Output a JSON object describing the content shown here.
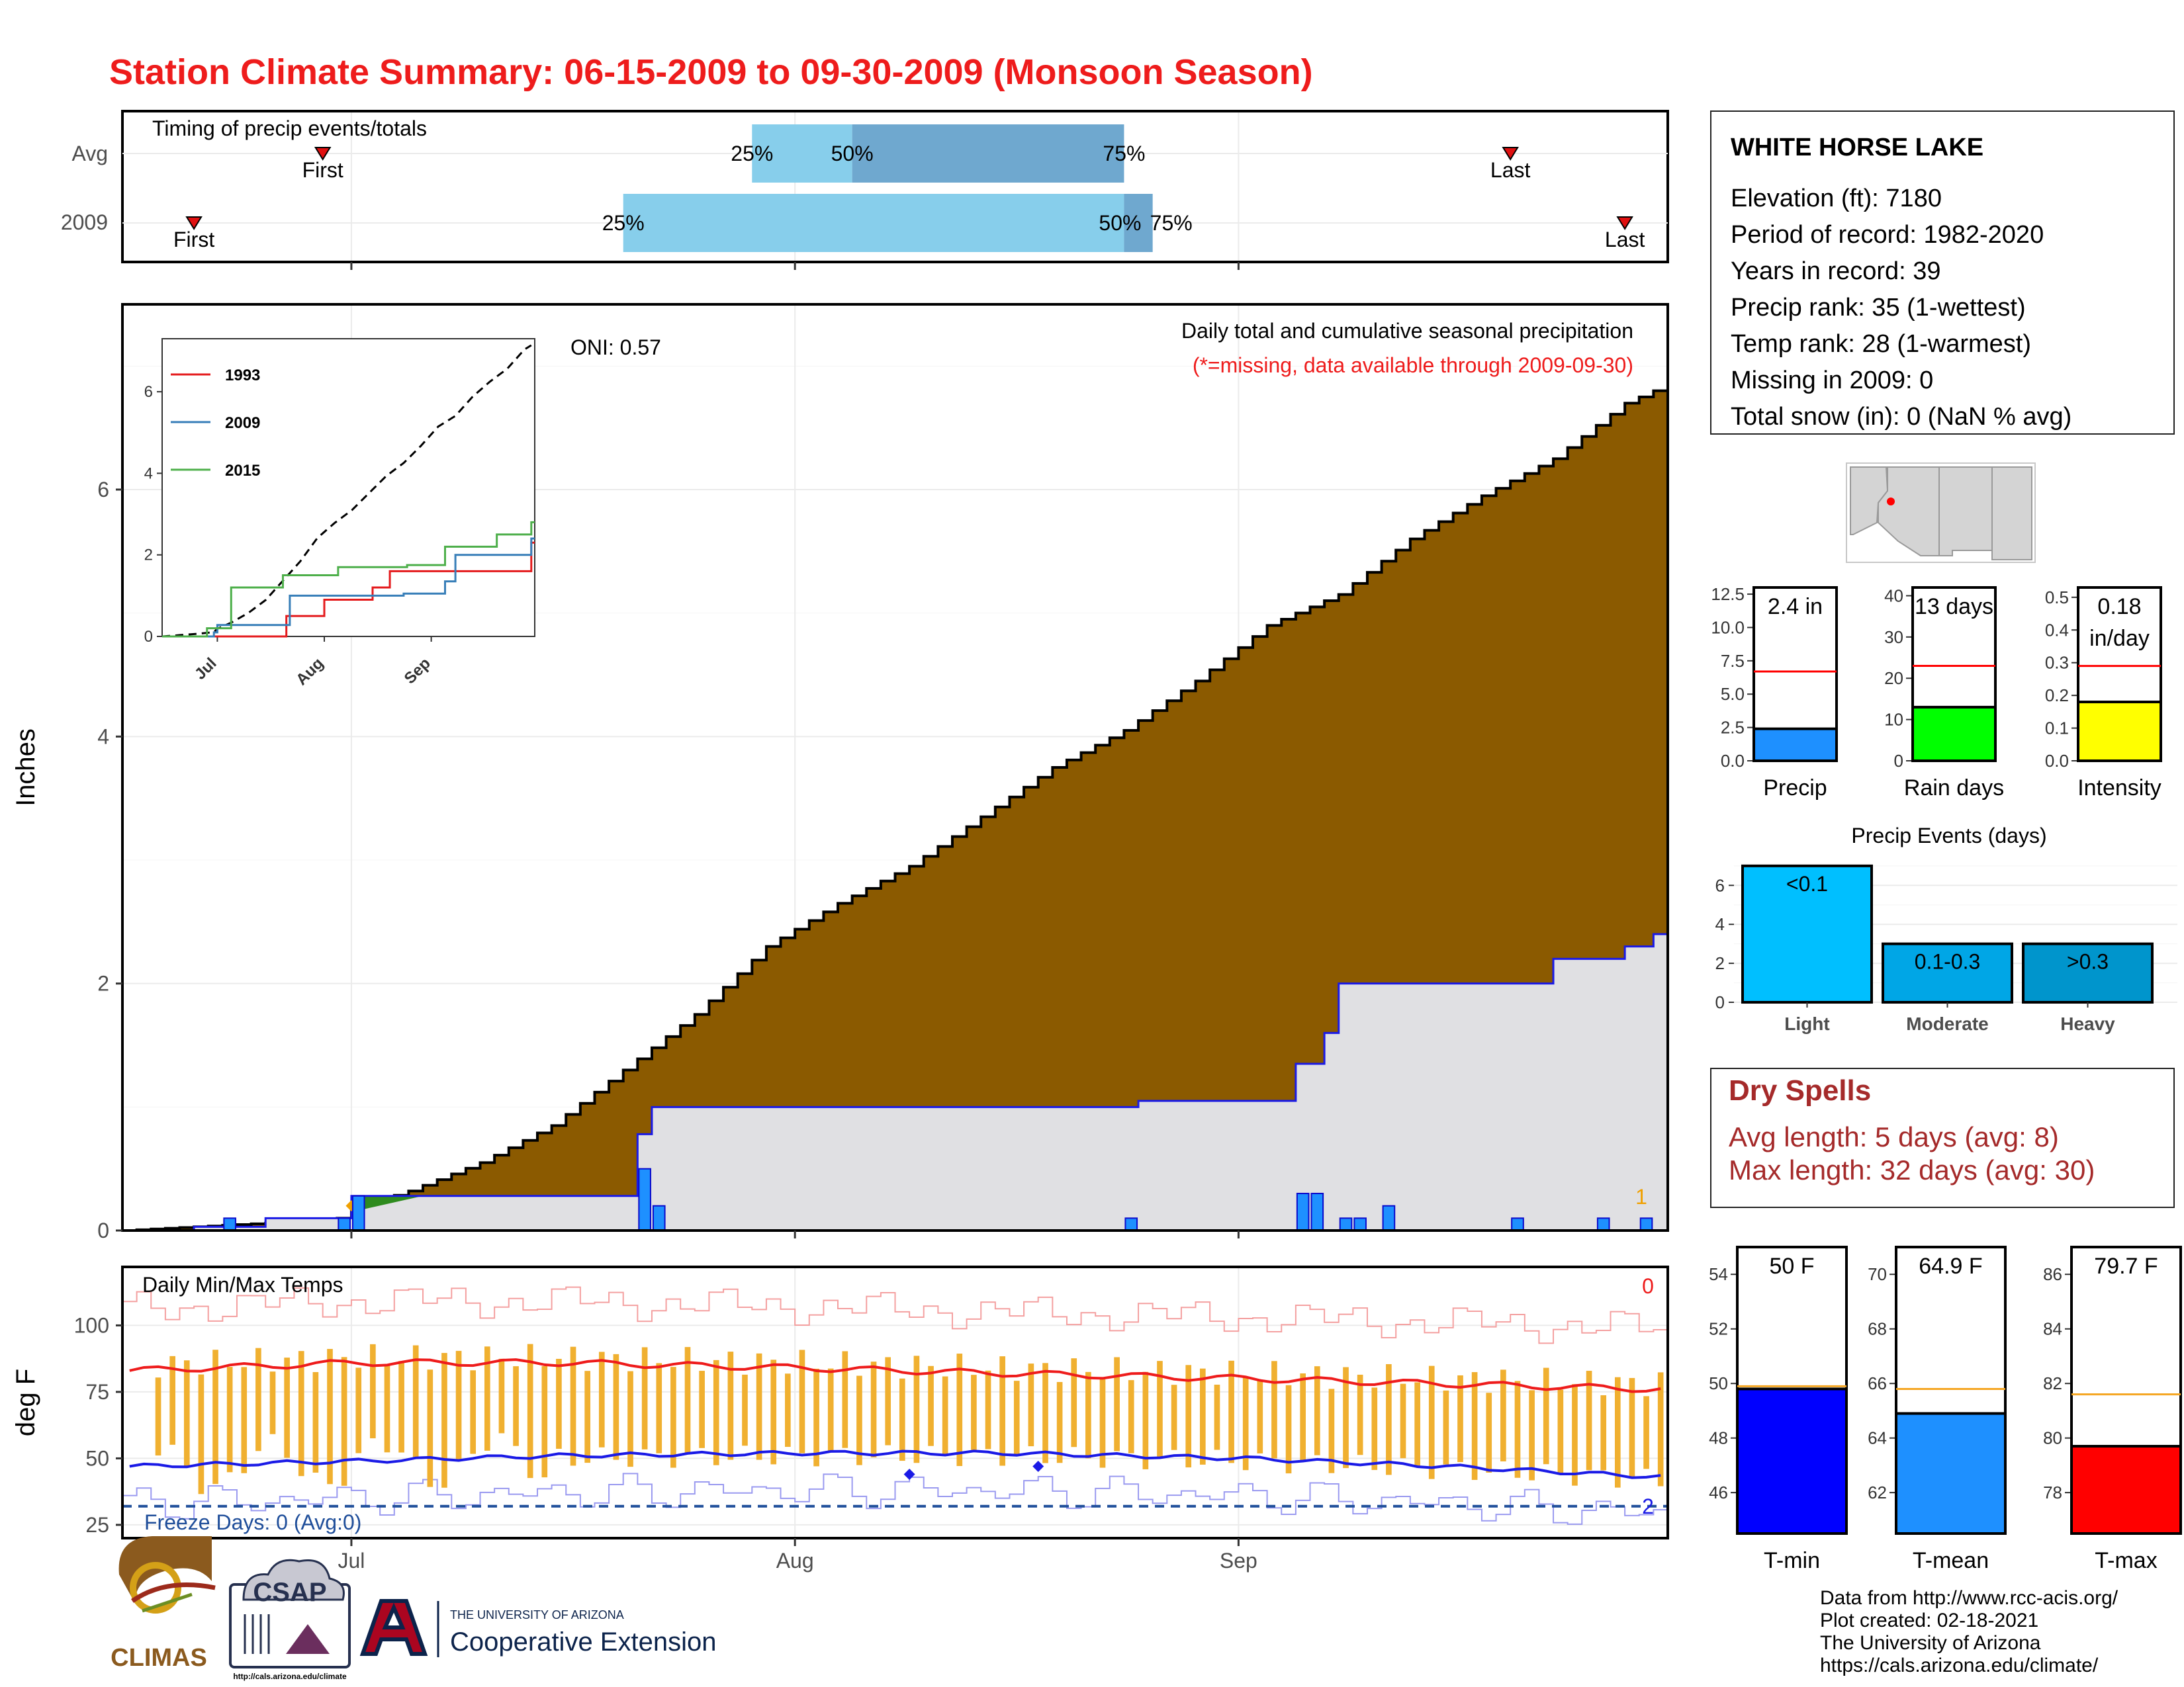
{
  "title": "Station Climate Summary: 06-15-2009 to 09-30-2009 (Monsoon Season)",
  "colors": {
    "title": "#ee1c1c",
    "cumulative_fill": "#8b5a00",
    "avg_fill": "#e0e0e3",
    "avg_line": "#1a1ae6",
    "daily_bar": "#1e90ff",
    "timing_light": "#87ceeb",
    "timing_dark": "#6fa8cf",
    "tmax_line": "#ee1c1c",
    "tmin_line": "#1a1ae6",
    "temp_bar": "#f0b030",
    "dry_spells": "#a52a2a",
    "precip_gauge": "#1e90ff",
    "raindays_gauge": "#00ff00",
    "intensity_gauge": "#ffff00",
    "tmin_gauge": "#0000ff",
    "tmean_gauge": "#1e90ff",
    "tmax_gauge": "#ff0000"
  },
  "timing": {
    "title": "Timing of precip events/totals",
    "rows": [
      {
        "label": "Avg",
        "first": "2009-06-29",
        "q25": "2009-07-29",
        "q50": "2009-08-05",
        "q75": "2009-08-24",
        "last": "2009-09-20",
        "first_label": "First",
        "last_label": "Last",
        "p25_label": "25%",
        "p50_label": "50%",
        "p75_label": "75%"
      },
      {
        "label": "2009",
        "first": "2009-06-20",
        "q25": "2009-07-20",
        "q50": "2009-08-24",
        "q75": "2009-08-26",
        "last": "2009-09-28",
        "first_label": "First",
        "last_label": "Last",
        "p25_label": "25%",
        "p50_label": "50%",
        "p75_label": "75%"
      }
    ]
  },
  "x_axis": {
    "start": "2009-06-15",
    "end": "2009-09-30",
    "ticks": [
      {
        "label": "Jul",
        "date": "2009-07-01"
      },
      {
        "label": "Aug",
        "date": "2009-08-01"
      },
      {
        "label": "Sep",
        "date": "2009-09-01"
      }
    ]
  },
  "main_panel": {
    "ylabel": "Inches",
    "yticks": [
      "0",
      "2",
      "4",
      "6"
    ],
    "oni": "ONI: 0.57",
    "subtitle": "Daily total and cumulative seasonal precipitation",
    "missing_note": "(*=missing, data available through 2009-09-30)",
    "missing_count": "1"
  },
  "inset": {
    "yticks": [
      "0",
      "2",
      "4",
      "6"
    ],
    "xticks": [
      "Jul",
      "Aug",
      "Sep"
    ],
    "legend": [
      {
        "name": "1993",
        "color": "#e41a1c"
      },
      {
        "name": "2009",
        "color": "#377eb8"
      },
      {
        "name": "2015",
        "color": "#4daf4a"
      }
    ]
  },
  "temp_panel": {
    "title": "Daily Min/Max Temps",
    "ylabel": "deg F",
    "yticks": [
      "25",
      "50",
      "75",
      "100"
    ],
    "missing_count": "0",
    "freeze": "Freeze Days: 0 (Avg:0)",
    "freeze_count": "2",
    "freeze_line": 32
  },
  "station": {
    "name": "WHITE HORSE LAKE",
    "lines": [
      "Elevation (ft): 7180",
      "Period of record: 1982-2020",
      "Years in record: 39",
      "Precip rank: 35 (1-wettest)",
      "Temp rank: 28 (1-warmest)",
      "Missing in 2009: 0",
      "Total snow (in): 0 (NaN % avg)"
    ]
  },
  "gauges_precip": [
    {
      "label": "Precip",
      "value_label": "2.4 in",
      "value": 2.4,
      "avg": 6.7,
      "max": 13,
      "ticks": [
        "0.0",
        "2.5",
        "5.0",
        "7.5",
        "10.0",
        "12.5"
      ],
      "tick_values": [
        0,
        2.5,
        5,
        7.5,
        10,
        12.5
      ],
      "color": "#1e90ff"
    },
    {
      "label": "Rain days",
      "value_label": "13 days",
      "value": 13,
      "avg": 23,
      "max": 42,
      "ticks": [
        "0",
        "10",
        "20",
        "30",
        "40"
      ],
      "tick_values": [
        0,
        10,
        20,
        30,
        40
      ],
      "color": "#00ff00"
    },
    {
      "label": "Intensity",
      "value_label": "0.18",
      "value_label2": "in/day",
      "value": 0.18,
      "avg": 0.29,
      "max": 0.53,
      "ticks": [
        "0.0",
        "0.1",
        "0.2",
        "0.3",
        "0.4",
        "0.5"
      ],
      "tick_values": [
        0,
        0.1,
        0.2,
        0.3,
        0.4,
        0.5
      ],
      "color": "#ffff00"
    }
  ],
  "events": {
    "title": "Precip Events (days)",
    "yticks": [
      "0",
      "2",
      "4",
      "6"
    ],
    "bars": [
      {
        "name": "Light",
        "range": "<0.1",
        "value": 7,
        "color": "#00bfff"
      },
      {
        "name": "Moderate",
        "range": "0.1-0.3",
        "value": 3,
        "color": "#00a6e6"
      },
      {
        "name": "Heavy",
        "range": ">0.3",
        "value": 3,
        "color": "#0095cc"
      }
    ]
  },
  "dry_spells": {
    "title": "Dry Spells",
    "avg": "Avg length: 5 days (avg: 8)",
    "max": "Max length: 32 days (avg: 30)"
  },
  "gauges_temp": [
    {
      "label": "T-min",
      "value_label": "50 F",
      "value": 49.8,
      "avg": 49.9,
      "min": 44.5,
      "max": 55,
      "ticks": [
        "46",
        "48",
        "50",
        "52",
        "54"
      ],
      "tick_values": [
        46,
        48,
        50,
        52,
        54
      ],
      "color": "#0000ff"
    },
    {
      "label": "T-mean",
      "value_label": "64.9 F",
      "value": 64.9,
      "avg": 65.8,
      "min": 60.5,
      "max": 71,
      "ticks": [
        "62",
        "64",
        "66",
        "68",
        "70"
      ],
      "tick_values": [
        62,
        64,
        66,
        68,
        70
      ],
      "color": "#1e90ff"
    },
    {
      "label": "T-max",
      "value_label": "79.7 F",
      "value": 79.7,
      "avg": 81.6,
      "min": 76.5,
      "max": 87,
      "ticks": [
        "78",
        "80",
        "82",
        "84",
        "86"
      ],
      "tick_values": [
        78,
        80,
        82,
        84,
        86
      ],
      "color": "#ff0000"
    }
  ],
  "footer": {
    "credits": [
      "Data from http://www.rcc-acis.org/",
      "Plot created: 02-18-2021",
      "The University of Arizona",
      "https://cals.arizona.edu/climate/"
    ],
    "climas": "CLIMAS",
    "csap": "CSAP",
    "csap_url": "http://cals.arizona.edu/climate",
    "ua_small": "THE UNIVERSITY OF ARIZONA",
    "ua_big": "Cooperative Extension"
  },
  "chart_data": {
    "type": "area",
    "title": "Station Climate Summary: 06-15-2009 to 09-30-2009 (Monsoon Season)",
    "ylabel": "Inches",
    "ylim": [
      0,
      7.5
    ],
    "cumulative_avg": {
      "x": [
        "06-15",
        "06-20",
        "06-25",
        "06-30",
        "07-01",
        "07-05",
        "07-10",
        "07-15",
        "07-20",
        "07-25",
        "07-30",
        "08-04",
        "08-09",
        "08-14",
        "08-19",
        "08-24",
        "08-29",
        "09-03",
        "09-08",
        "09-13",
        "09-18",
        "09-23",
        "09-28",
        "09-30"
      ],
      "values": [
        0,
        0.03,
        0.06,
        0.1,
        0.18,
        0.32,
        0.55,
        0.85,
        1.3,
        1.75,
        2.3,
        2.65,
        2.95,
        3.35,
        3.75,
        4.05,
        4.45,
        4.9,
        5.15,
        5.6,
        5.95,
        6.25,
        6.7,
        6.8
      ]
    },
    "cumulative_2009": {
      "x": [
        "06-15",
        "06-20",
        "06-25",
        "06-30",
        "07-01",
        "07-20",
        "07-21",
        "07-22",
        "08-24",
        "08-25",
        "09-04",
        "09-05",
        "09-07",
        "09-08",
        "09-14",
        "09-23",
        "09-28",
        "09-30"
      ],
      "values": [
        0,
        0.03,
        0.1,
        0.1,
        0.28,
        0.28,
        0.78,
        1.0,
        1.0,
        1.05,
        1.05,
        1.35,
        1.6,
        2.0,
        2.0,
        2.2,
        2.3,
        2.4
      ]
    },
    "daily_2009": {
      "x": [
        "06-22",
        "06-30",
        "07-01",
        "07-21",
        "07-22",
        "08-24",
        "09-05",
        "09-06",
        "09-08",
        "09-09",
        "09-11",
        "09-20",
        "09-26",
        "09-29"
      ],
      "values": [
        0.1,
        0.1,
        0.28,
        0.5,
        0.2,
        0.1,
        0.3,
        0.3,
        0.1,
        0.1,
        0.2,
        0.1,
        0.1,
        0.1
      ]
    },
    "inset_series": [
      {
        "name": "1993",
        "x": [
          "06-15",
          "07-20",
          "07-21",
          "08-01",
          "08-15",
          "08-20",
          "09-30"
        ],
        "values": [
          0,
          0,
          0.5,
          0.9,
          1.2,
          1.6,
          2.3
        ]
      },
      {
        "name": "2009",
        "x": [
          "06-15",
          "06-30",
          "07-01",
          "07-20",
          "07-22",
          "08-24",
          "09-05",
          "09-08",
          "09-30"
        ],
        "values": [
          0,
          0.1,
          0.28,
          0.28,
          1.0,
          1.05,
          1.35,
          2.0,
          2.4
        ]
      },
      {
        "name": "2015",
        "x": [
          "06-15",
          "06-28",
          "07-05",
          "07-20",
          "08-05",
          "08-25",
          "09-05",
          "09-20",
          "09-30"
        ],
        "values": [
          0,
          0.2,
          1.2,
          1.5,
          1.7,
          1.75,
          2.2,
          2.5,
          2.8
        ]
      }
    ],
    "temperature": {
      "ylabel": "deg F",
      "ylim": [
        20,
        120
      ],
      "tmax_avg": {
        "x": [
          "06-15",
          "07-01",
          "07-15",
          "08-01",
          "08-15",
          "09-01",
          "09-15",
          "09-30"
        ],
        "values": [
          83,
          86,
          86,
          84,
          82,
          80,
          78,
          76
        ]
      },
      "tmin_avg": {
        "x": [
          "06-15",
          "07-01",
          "07-15",
          "08-01",
          "08-15",
          "09-01",
          "09-15",
          "09-30"
        ],
        "values": [
          47,
          49,
          51,
          52,
          52,
          50,
          47,
          43
        ]
      }
    }
  }
}
